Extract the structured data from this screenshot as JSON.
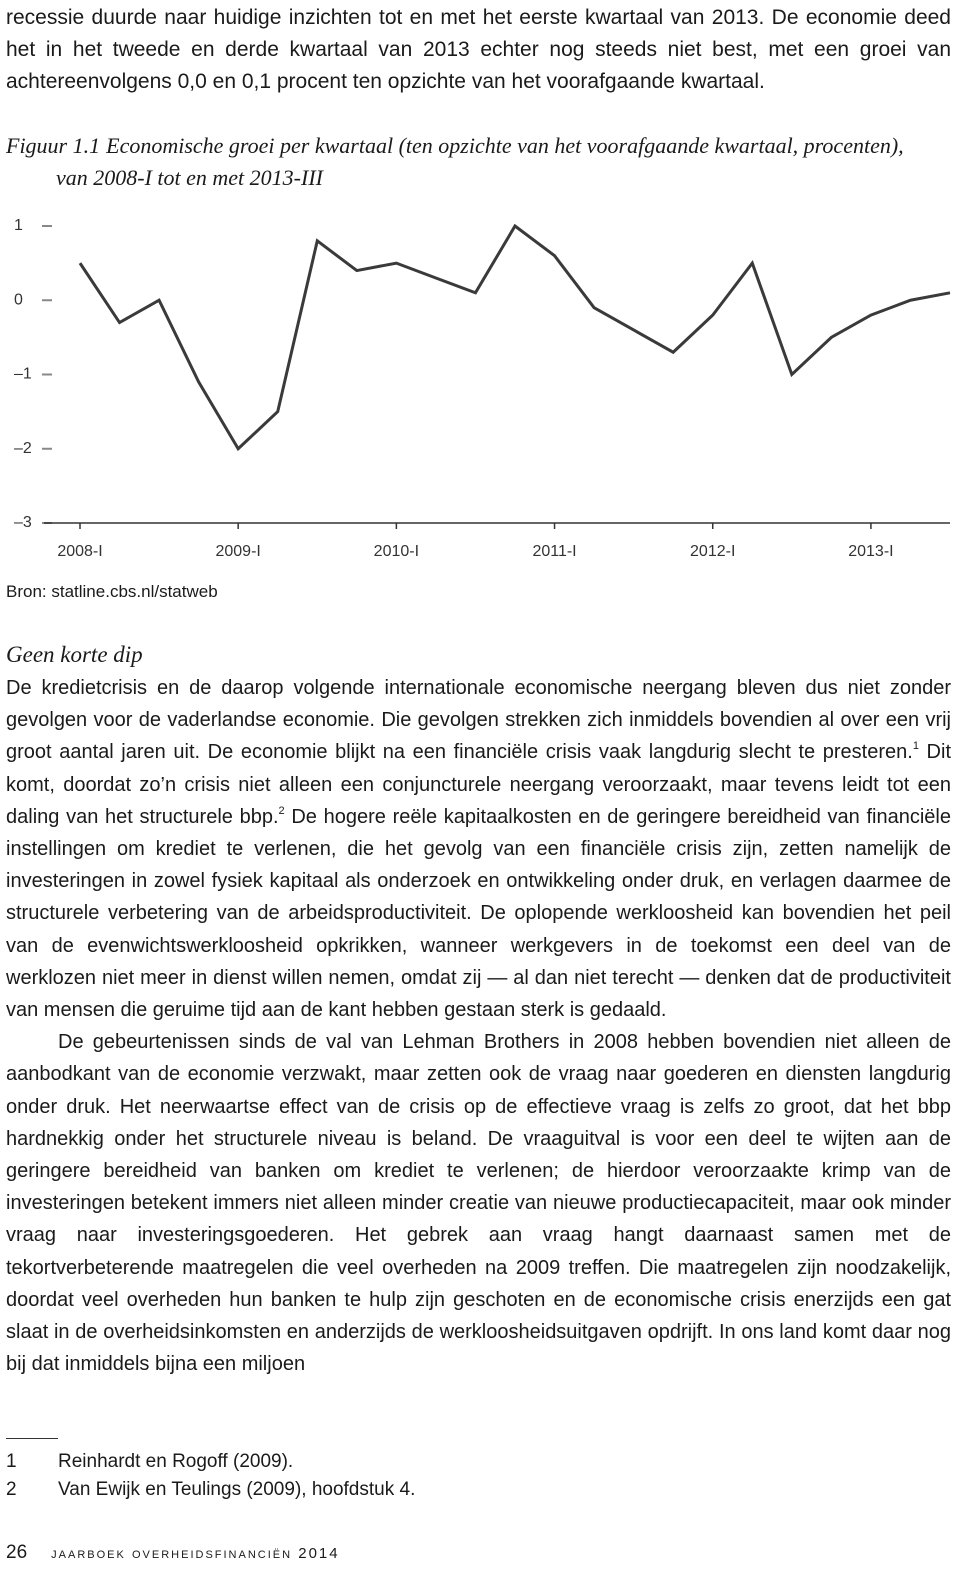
{
  "intro": "recessie duurde naar huidige inzichten tot en met het eerste kwartaal van 2013. De economie deed het in het tweede en derde kwartaal van 2013 echter nog steeds niet best, met een groei van achtereenvolgens 0,0 en 0,1 procent ten opzichte van het voorafgaande kwartaal.",
  "figure": {
    "label": "Figuur 1.1",
    "caption": "Economische groei per kwartaal (ten opzichte van het voorafgaande kwartaal, procenten), van 2008-I tot en met 2013-III",
    "source": "Bron: statline.cbs.nl/statweb"
  },
  "chart_data": {
    "type": "line",
    "categories": [
      "2008-I",
      null,
      null,
      null,
      "2009-I",
      null,
      null,
      null,
      "2010-I",
      null,
      null,
      null,
      "2011-I",
      null,
      null,
      null,
      "2012-I",
      null,
      null,
      null,
      "2013-I",
      null,
      null
    ],
    "series": [
      {
        "name": "Economische groei",
        "color": "#3a3a3a",
        "values": [
          0.5,
          -0.3,
          0.0,
          -1.1,
          -2.0,
          -1.5,
          0.8,
          0.4,
          0.5,
          0.3,
          0.1,
          1.0,
          0.6,
          -0.1,
          -0.4,
          -0.7,
          -0.2,
          0.5,
          -1.0,
          -0.5,
          -0.2,
          0.0,
          0.1
        ]
      }
    ],
    "ylim": [
      -3,
      1
    ],
    "yticks": [
      {
        "value": -3,
        "label": "–3"
      },
      {
        "value": -2,
        "label": "–2"
      },
      {
        "value": -1,
        "label": "–1"
      },
      0,
      1
    ],
    "grid": false
  },
  "section": {
    "heading": "Geen korte dip",
    "paragraphs": [
      [
        "De kredietcrisis en de daarop volgende internationale economische neergang bleven dus niet zonder gevolgen voor de vaderlandse economie. Die gevolgen strekken zich inmiddels bovendien al over een vrij groot aantal jaren uit. De economie blijkt na een financiële crisis vaak langdurig slecht te presteren.",
        {
          "sup": "1"
        },
        " Dit komt, doordat zo’n crisis niet alleen een conjuncturele neergang veroorzaakt, maar tevens leidt tot een daling van het structurele bbp.",
        {
          "sup": "2"
        },
        " De hogere reële kapitaalkosten en de geringere bereidheid van financiële instellingen om krediet te verlenen, die het gevolg van een financiële crisis zijn, zetten namelijk de investeringen in zowel fysiek kapitaal als onderzoek en ontwikkeling onder druk, en verlagen daarmee de structurele verbetering van de arbeidsproductiviteit. De oplopende werkloosheid kan bovendien het peil van de evenwichtswerkloosheid opkrikken, wanneer werkgevers in de toekomst een deel van de werklozen niet meer in dienst willen nemen, omdat zij — al dan niet terecht — denken dat de productiviteit van mensen die geruime tijd aan de kant hebben gestaan sterk is gedaald."
      ],
      [
        "De gebeurtenissen sinds de val van Lehman Brothers in 2008 hebben bovendien niet alleen de aanbodkant van de economie verzwakt, maar zetten ook de vraag naar goederen en diensten langdurig onder druk. Het neerwaartse effect van de crisis op de effectieve vraag is zelfs zo groot, dat het bbp hardnekkig onder het structurele niveau is beland. De vraaguitval is voor een deel te wijten aan de geringere bereidheid van banken om krediet te verlenen; de hierdoor veroorzaakte krimp van de investeringen betekent immers niet alleen minder creatie van nieuwe productiecapaciteit, maar ook minder vraag naar investeringsgoederen. Het gebrek aan vraag hangt daarnaast samen met de tekortverbeterende maatregelen die veel overheden na 2009 treffen. Die maatregelen zijn noodzakelijk, doordat veel overheden hun banken te hulp zijn geschoten en de economische crisis enerzijds een gat slaat in de overheidsinkomsten en anderzijds de werkloosheidsuitgaven opdrijft. In ons land komt daar nog bij dat inmiddels bijna een miljoen"
      ]
    ]
  },
  "footnotes": [
    {
      "number": "1",
      "text": "Reinhardt en Rogoff (2009)."
    },
    {
      "number": "2",
      "text": "Van Ewijk en Teulings (2009), hoofdstuk 4."
    }
  ],
  "footer": {
    "page": "26",
    "title": "jaarboek overheidsfinanciën 2014"
  }
}
